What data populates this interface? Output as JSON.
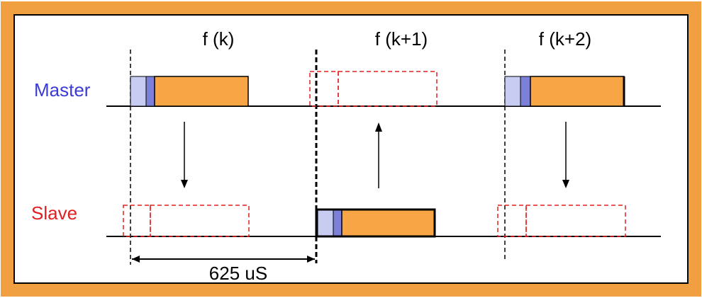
{
  "frames": [
    {
      "label": "f (k)"
    },
    {
      "label": "f (k+1)"
    },
    {
      "label": "f (k+2)"
    }
  ],
  "roles": {
    "master": {
      "label": "Master",
      "color": "#3b3bd6"
    },
    "slave": {
      "label": "Slave",
      "color": "#e02020"
    }
  },
  "duration_label": "625 uS",
  "colors": {
    "frame_border": "#f0a040",
    "packet_fill": "#f7a545",
    "header_light": "#c8ccf0",
    "header_dark": "#7d80d8",
    "dashed_slot": "#e02020",
    "line": "#000000"
  }
}
